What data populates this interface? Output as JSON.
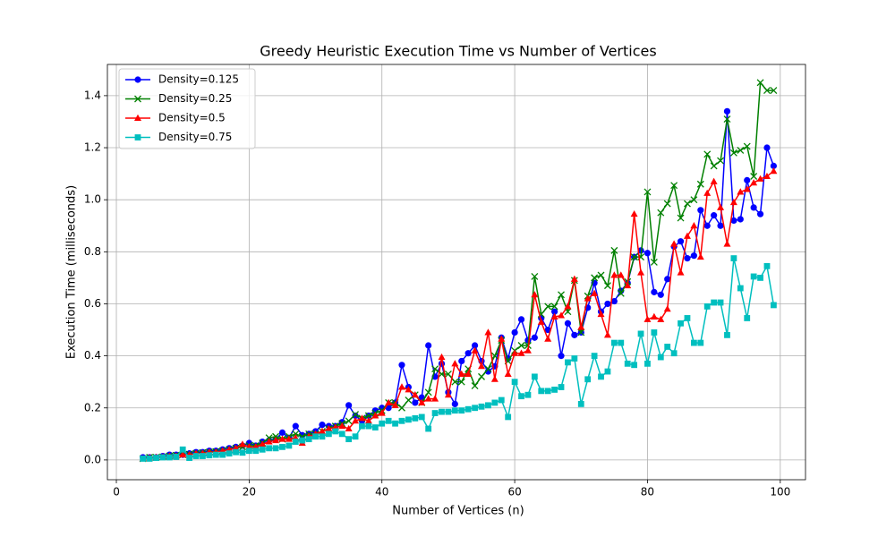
{
  "chart_data": {
    "type": "line",
    "title": "Greedy Heuristic Execution Time vs Number of Vertices",
    "xlabel": "Number of Vertices (n)",
    "ylabel": "Execution Time (milliseconds)",
    "x": [
      4,
      5,
      6,
      7,
      8,
      9,
      10,
      11,
      12,
      13,
      14,
      15,
      16,
      17,
      18,
      19,
      20,
      21,
      22,
      23,
      24,
      25,
      26,
      27,
      28,
      29,
      30,
      31,
      32,
      33,
      34,
      35,
      36,
      37,
      38,
      39,
      40,
      41,
      42,
      43,
      44,
      45,
      46,
      47,
      48,
      49,
      50,
      51,
      52,
      53,
      54,
      55,
      56,
      57,
      58,
      59,
      60,
      61,
      62,
      63,
      64,
      65,
      66,
      67,
      68,
      69,
      70,
      71,
      72,
      73,
      74,
      75,
      76,
      77,
      78,
      79,
      80,
      81,
      82,
      83,
      84,
      85,
      86,
      87,
      88,
      89,
      90,
      91,
      92,
      93,
      94,
      95,
      96,
      97,
      98,
      99
    ],
    "series": [
      {
        "name": "Density=0.125",
        "color": "#0000ff",
        "marker": "circle",
        "values": [
          0.01,
          0.01,
          0.01,
          0.015,
          0.02,
          0.02,
          0.02,
          0.025,
          0.03,
          0.03,
          0.035,
          0.035,
          0.04,
          0.045,
          0.05,
          0.055,
          0.065,
          0.055,
          0.07,
          0.075,
          0.08,
          0.105,
          0.085,
          0.13,
          0.095,
          0.1,
          0.11,
          0.135,
          0.13,
          0.13,
          0.145,
          0.21,
          0.17,
          0.15,
          0.17,
          0.19,
          0.2,
          0.2,
          0.22,
          0.365,
          0.28,
          0.22,
          0.24,
          0.44,
          0.32,
          0.37,
          0.26,
          0.215,
          0.38,
          0.41,
          0.44,
          0.38,
          0.34,
          0.36,
          0.47,
          0.39,
          0.49,
          0.54,
          0.46,
          0.47,
          0.545,
          0.5,
          0.57,
          0.4,
          0.525,
          0.48,
          0.49,
          0.585,
          0.68,
          0.57,
          0.6,
          0.61,
          0.65,
          0.68,
          0.78,
          0.805,
          0.795,
          0.645,
          0.635,
          0.695,
          0.82,
          0.84,
          0.775,
          0.785,
          0.96,
          0.9,
          0.94,
          0.9,
          1.34,
          0.92,
          0.925,
          1.075,
          0.97,
          0.945,
          1.2,
          1.13
        ]
      },
      {
        "name": "Density=0.25",
        "color": "#008000",
        "marker": "x",
        "values": [
          0.005,
          0.01,
          0.01,
          0.012,
          0.015,
          0.018,
          0.02,
          0.022,
          0.025,
          0.028,
          0.03,
          0.032,
          0.035,
          0.04,
          0.045,
          0.05,
          0.055,
          0.055,
          0.065,
          0.085,
          0.09,
          0.08,
          0.09,
          0.1,
          0.09,
          0.1,
          0.1,
          0.11,
          0.12,
          0.13,
          0.14,
          0.15,
          0.175,
          0.16,
          0.17,
          0.18,
          0.19,
          0.22,
          0.22,
          0.2,
          0.23,
          0.25,
          0.22,
          0.26,
          0.35,
          0.33,
          0.33,
          0.3,
          0.3,
          0.35,
          0.285,
          0.32,
          0.35,
          0.4,
          0.46,
          0.38,
          0.42,
          0.44,
          0.44,
          0.705,
          0.56,
          0.59,
          0.59,
          0.635,
          0.57,
          0.69,
          0.49,
          0.63,
          0.7,
          0.71,
          0.67,
          0.805,
          0.64,
          0.685,
          0.78,
          0.78,
          1.03,
          0.76,
          0.95,
          0.985,
          1.055,
          0.93,
          0.985,
          1.0,
          1.06,
          1.175,
          1.13,
          1.15,
          1.31,
          1.18,
          1.19,
          1.205,
          1.09,
          1.45,
          1.42,
          1.42
        ]
      },
      {
        "name": "Density=0.5",
        "color": "#ff0000",
        "marker": "triangle",
        "values": [
          0.005,
          0.008,
          0.01,
          0.012,
          0.015,
          0.015,
          0.02,
          0.02,
          0.025,
          0.025,
          0.03,
          0.03,
          0.035,
          0.04,
          0.045,
          0.06,
          0.05,
          0.05,
          0.06,
          0.07,
          0.075,
          0.08,
          0.08,
          0.085,
          0.065,
          0.09,
          0.1,
          0.11,
          0.12,
          0.125,
          0.13,
          0.12,
          0.15,
          0.16,
          0.15,
          0.17,
          0.18,
          0.22,
          0.21,
          0.28,
          0.27,
          0.25,
          0.22,
          0.235,
          0.235,
          0.395,
          0.25,
          0.37,
          0.33,
          0.33,
          0.42,
          0.36,
          0.49,
          0.31,
          0.465,
          0.33,
          0.41,
          0.41,
          0.42,
          0.635,
          0.53,
          0.465,
          0.55,
          0.555,
          0.59,
          0.695,
          0.51,
          0.62,
          0.64,
          0.56,
          0.48,
          0.71,
          0.71,
          0.67,
          0.945,
          0.72,
          0.54,
          0.55,
          0.54,
          0.58,
          0.83,
          0.72,
          0.86,
          0.9,
          0.78,
          1.025,
          1.07,
          0.97,
          0.83,
          0.99,
          1.03,
          1.04,
          1.065,
          1.08,
          1.09,
          1.11
        ]
      },
      {
        "name": "Density=0.75",
        "color": "#00bfbf",
        "marker": "square",
        "values": [
          0.005,
          0.005,
          0.008,
          0.01,
          0.01,
          0.012,
          0.04,
          0.008,
          0.015,
          0.015,
          0.018,
          0.02,
          0.02,
          0.025,
          0.03,
          0.028,
          0.035,
          0.035,
          0.04,
          0.045,
          0.045,
          0.05,
          0.055,
          0.07,
          0.075,
          0.08,
          0.09,
          0.09,
          0.1,
          0.11,
          0.1,
          0.08,
          0.09,
          0.13,
          0.13,
          0.125,
          0.14,
          0.15,
          0.14,
          0.15,
          0.155,
          0.16,
          0.165,
          0.12,
          0.18,
          0.185,
          0.185,
          0.19,
          0.19,
          0.195,
          0.2,
          0.205,
          0.21,
          0.22,
          0.23,
          0.165,
          0.3,
          0.245,
          0.25,
          0.32,
          0.265,
          0.265,
          0.27,
          0.28,
          0.375,
          0.39,
          0.215,
          0.31,
          0.4,
          0.32,
          0.34,
          0.45,
          0.45,
          0.37,
          0.365,
          0.485,
          0.37,
          0.49,
          0.395,
          0.435,
          0.41,
          0.525,
          0.545,
          0.45,
          0.45,
          0.59,
          0.605,
          0.605,
          0.48,
          0.775,
          0.66,
          0.545,
          0.705,
          0.7,
          0.745,
          0.595
        ]
      }
    ],
    "xlim": [
      -1.35,
      103.8
    ],
    "ylim": [
      -0.076,
      1.52
    ],
    "xticks": [
      0,
      20,
      40,
      60,
      80,
      100
    ],
    "yticks": [
      {
        "value": 0,
        "label": "0.0"
      },
      0.2,
      0.4,
      0.6,
      0.8,
      {
        "value": 1,
        "label": "1.0"
      },
      1.2,
      1.4
    ],
    "grid": true,
    "legend": "upper left"
  }
}
